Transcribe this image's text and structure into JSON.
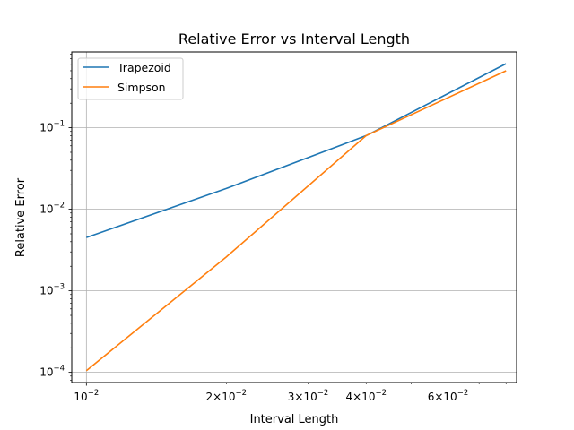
{
  "chart_data": {
    "type": "line",
    "title": "Relative Error vs Interval Length",
    "xlabel": "Interval Length",
    "ylabel": "Relative Error",
    "xscale": "log",
    "yscale": "log",
    "xlim": [
      0.0093,
      0.0843
    ],
    "ylim": [
      7.5e-05,
      0.85
    ],
    "grid": "on",
    "legend": "top-left",
    "x": [
      0.01,
      0.02,
      0.04,
      0.08
    ],
    "series": [
      {
        "name": "Trapezoid",
        "color": "#1f77b4",
        "values": [
          0.0045,
          0.018,
          0.08,
          0.61
        ]
      },
      {
        "name": "Simpson",
        "color": "#ff7f0e",
        "values": [
          0.000105,
          0.0026,
          0.08,
          0.5
        ]
      }
    ],
    "x_major_ticks": [
      {
        "value": 0.01,
        "base": "10",
        "exp": "−2"
      }
    ],
    "x_minor_ticks": [
      {
        "value": 0.02,
        "base": "2×10",
        "exp": "−2"
      },
      {
        "value": 0.03,
        "base": "3×10",
        "exp": "−2"
      },
      {
        "value": 0.04,
        "base": "4×10",
        "exp": "−2"
      },
      {
        "value": 0.05,
        "base": "",
        "exp": ""
      },
      {
        "value": 0.06,
        "base": "6×10",
        "exp": "−2"
      },
      {
        "value": 0.07,
        "base": "",
        "exp": ""
      },
      {
        "value": 0.08,
        "base": "",
        "exp": ""
      }
    ],
    "y_major_ticks": [
      {
        "value": 0.0001,
        "base": "10",
        "exp": "−4"
      },
      {
        "value": 0.001,
        "base": "10",
        "exp": "−3"
      },
      {
        "value": 0.01,
        "base": "10",
        "exp": "−2"
      },
      {
        "value": 0.1,
        "base": "10",
        "exp": "−1"
      }
    ]
  }
}
